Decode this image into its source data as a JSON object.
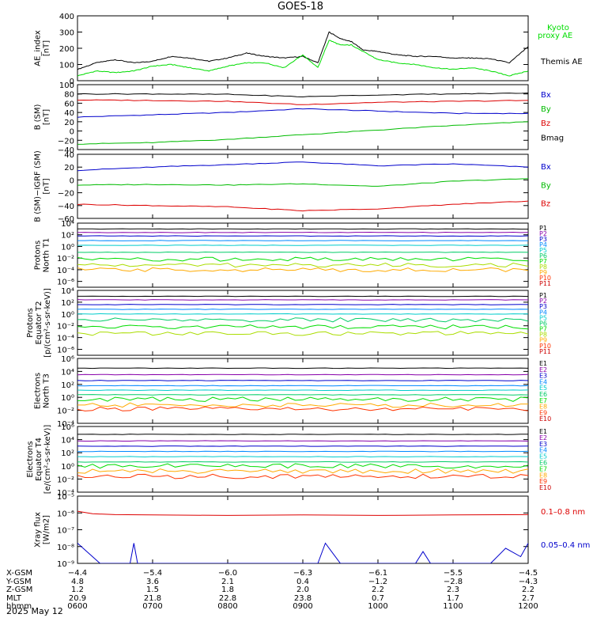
{
  "title": "GOES-18",
  "date_label": "2025 May 12",
  "chart_data": [
    {
      "type": "line",
      "panel": "ae",
      "ylabel": [
        "AE_index",
        "[nT]"
      ],
      "ylim": [
        0,
        400
      ],
      "ticks": [
        0,
        100,
        200,
        300,
        400
      ],
      "tick_labels": [
        "0",
        "100",
        "200",
        "300",
        "400"
      ],
      "legend": [
        {
          "name": "Kyoto",
          "color": "#00dd00"
        },
        {
          "name": "proxy AE",
          "color": "#00dd00"
        },
        {
          "name": "Themis AE",
          "color": "#000000"
        }
      ],
      "series": [
        {
          "name": "Themis AE",
          "color": "#000000",
          "x": [
            6.0,
            6.25,
            6.5,
            6.75,
            7.0,
            7.25,
            7.5,
            7.75,
            8.0,
            8.25,
            8.5,
            8.75,
            9.0,
            9.2,
            9.35,
            9.5,
            9.65,
            9.8,
            10.0,
            10.25,
            10.5,
            10.75,
            11.0,
            11.25,
            11.5,
            11.75,
            12.0
          ],
          "y": [
            70,
            110,
            130,
            110,
            120,
            150,
            140,
            120,
            140,
            170,
            150,
            140,
            150,
            110,
            300,
            260,
            240,
            190,
            180,
            160,
            150,
            150,
            140,
            140,
            135,
            110,
            210
          ]
        },
        {
          "name": "Kyoto proxy AE",
          "color": "#00dd00",
          "x": [
            6.0,
            6.25,
            6.5,
            6.75,
            7.0,
            7.25,
            7.5,
            7.75,
            8.0,
            8.25,
            8.5,
            8.75,
            9.0,
            9.2,
            9.35,
            9.5,
            9.65,
            9.8,
            10.0,
            10.25,
            10.5,
            10.75,
            11.0,
            11.25,
            11.5,
            11.75,
            12.0
          ],
          "y": [
            30,
            60,
            50,
            60,
            90,
            100,
            80,
            60,
            90,
            110,
            110,
            80,
            160,
            80,
            250,
            220,
            220,
            180,
            130,
            110,
            100,
            80,
            70,
            80,
            60,
            30,
            60
          ]
        }
      ]
    },
    {
      "type": "line",
      "panel": "b_sm",
      "ylabel": [
        "B (SM)",
        "[nT]"
      ],
      "ylim": [
        -40,
        100
      ],
      "ticks": [
        -40,
        -20,
        0,
        20,
        40,
        60,
        80,
        100
      ],
      "tick_labels": [
        "−40",
        "−20",
        "0",
        "20",
        "40",
        "60",
        "80",
        "100"
      ],
      "legend": [
        {
          "name": "Bx",
          "color": "#0000cc"
        },
        {
          "name": "By",
          "color": "#00bb00"
        },
        {
          "name": "Bz",
          "color": "#dd0000"
        },
        {
          "name": "Bmag",
          "color": "#000000"
        }
      ],
      "series": [
        {
          "name": "Bx",
          "color": "#0000cc",
          "x": [
            6,
            7,
            8,
            9,
            10,
            11,
            12
          ],
          "y": [
            30,
            35,
            40,
            48,
            43,
            38,
            38
          ]
        },
        {
          "name": "By",
          "color": "#00bb00",
          "x": [
            6,
            7,
            8,
            9,
            10,
            11,
            12
          ],
          "y": [
            -28,
            -25,
            -18,
            -8,
            2,
            12,
            20
          ]
        },
        {
          "name": "Bz",
          "color": "#dd0000",
          "x": [
            6,
            7,
            8,
            9,
            10,
            11,
            12
          ],
          "y": [
            67,
            66,
            64,
            57,
            62,
            64,
            66
          ]
        },
        {
          "name": "Bmag",
          "color": "#000000",
          "x": [
            6,
            7,
            8,
            9,
            10,
            11,
            12
          ],
          "y": [
            80,
            80,
            79,
            74,
            78,
            80,
            82
          ]
        }
      ]
    },
    {
      "type": "line",
      "panel": "b_igrf",
      "ylabel": [
        "B (SM)−IGRF (SM)",
        "[nT]"
      ],
      "ylim": [
        -60,
        40
      ],
      "ticks": [
        -60,
        -40,
        -20,
        0,
        20,
        40
      ],
      "tick_labels": [
        "−60",
        "−40",
        "−20",
        "0",
        "20",
        "40"
      ],
      "legend": [
        {
          "name": "Bx",
          "color": "#0000cc"
        },
        {
          "name": "By",
          "color": "#00bb00"
        },
        {
          "name": "Bz",
          "color": "#dd0000"
        }
      ],
      "series": [
        {
          "name": "Bx",
          "color": "#0000cc",
          "x": [
            6,
            7,
            8,
            9,
            10,
            11,
            12
          ],
          "y": [
            15,
            20,
            24,
            28,
            22,
            25,
            20
          ]
        },
        {
          "name": "By",
          "color": "#00bb00",
          "x": [
            6,
            7,
            8,
            9,
            10,
            11,
            12
          ],
          "y": [
            -8,
            -7,
            -8,
            -6,
            -10,
            -2,
            2
          ]
        },
        {
          "name": "Bz",
          "color": "#dd0000",
          "x": [
            6,
            7,
            8,
            9,
            10,
            11,
            12
          ],
          "y": [
            -38,
            -40,
            -42,
            -48,
            -45,
            -38,
            -33
          ]
        }
      ]
    },
    {
      "type": "line",
      "panel": "protons_t1",
      "ylabel": [
        "Protons",
        "North T1"
      ],
      "ylog": true,
      "ylim": [
        -7,
        4
      ],
      "ticks": [
        4,
        2,
        0,
        -2,
        -4,
        -6
      ],
      "tick_labels": [
        "10⁴",
        "10²",
        "10⁰",
        "10⁻²",
        "10⁻⁴",
        "10⁻⁶"
      ],
      "legend": [
        "P1",
        "P2",
        "P3",
        "P4",
        "P5",
        "P6",
        "P7",
        "P8",
        "P9",
        "P10",
        "P11"
      ],
      "log_levels": [
        3.0,
        2.4,
        1.8,
        1.0,
        0.2,
        -1.0,
        -2.2,
        -3.2,
        -4.0
      ]
    },
    {
      "type": "line",
      "panel": "protons_t2",
      "ylabel": [
        "Protons",
        "Equator T2",
        "[p/(cm²-s-sr-keV)]"
      ],
      "ylog": true,
      "ylim": [
        -7,
        4
      ],
      "ticks": [
        4,
        2,
        0,
        -2,
        -4,
        -6
      ],
      "tick_labels": [
        "10⁴",
        "10²",
        "10⁰",
        "10⁻²",
        "10⁻⁴",
        "10⁻⁶"
      ],
      "legend": [
        "P1",
        "P2",
        "P3",
        "P4",
        "P5",
        "P6",
        "P7",
        "P8",
        "P9",
        "P10",
        "P11"
      ],
      "log_levels": [
        3.0,
        2.4,
        1.6,
        0.8,
        0.0,
        -1.0,
        -2.2,
        -3.3
      ]
    },
    {
      "type": "line",
      "panel": "electrons_t3",
      "ylabel": [
        "Electrons",
        "North T3"
      ],
      "ylog": true,
      "ylim": [
        -4,
        6
      ],
      "ticks": [
        6,
        4,
        2,
        0,
        -2,
        -4
      ],
      "tick_labels": [
        "10⁶",
        "10⁴",
        "10²",
        "10⁰",
        "10⁻²",
        "10⁻⁴"
      ],
      "legend": [
        "E1",
        "E2",
        "E3",
        "E4",
        "E5",
        "E6",
        "E7",
        "E8",
        "E9",
        "E10"
      ],
      "log_levels": [
        4.5,
        3.5,
        2.6,
        1.8,
        1.1,
        0.4,
        -0.3,
        -1.2,
        -1.8
      ]
    },
    {
      "type": "line",
      "panel": "electrons_t4",
      "ylabel": [
        "Electrons",
        "Equator T4",
        "[e/(cm²-s-sr-keV)]"
      ],
      "ylog": true,
      "ylim": [
        -4,
        6
      ],
      "ticks": [
        6,
        4,
        2,
        0,
        -2,
        -4
      ],
      "tick_labels": [
        "10⁶",
        "10⁴",
        "10²",
        "10⁰",
        "10⁻²",
        "10⁻⁴"
      ],
      "legend": [
        "E1",
        "E2",
        "E3",
        "E4",
        "E5",
        "E6",
        "E7",
        "E8",
        "E9",
        "E10"
      ],
      "log_levels": [
        4.8,
        3.8,
        3.0,
        2.2,
        1.4,
        0.6,
        0.0,
        -0.8,
        -1.6
      ]
    },
    {
      "type": "line",
      "panel": "xray",
      "ylabel": [
        "Xray flux",
        "[W/m2]"
      ],
      "ylog": true,
      "ylim": [
        -9,
        -5
      ],
      "ticks": [
        -5,
        -6,
        -7,
        -8,
        -9
      ],
      "tick_labels": [
        "10⁻⁵",
        "10⁻⁶",
        "10⁻⁷",
        "10⁻⁸",
        "10⁻⁹"
      ],
      "legend": [
        {
          "name": "0.1–0.8 nm",
          "color": "#dd0000"
        },
        {
          "name": "0.05–0.4 nm",
          "color": "#0000cc"
        }
      ],
      "series": [
        {
          "name": "0.1–0.8 nm",
          "color": "#dd0000",
          "x": [
            6.0,
            6.2,
            6.5,
            7,
            8,
            9,
            10,
            11,
            12
          ],
          "y": [
            -5.9,
            -6.05,
            -6.1,
            -6.12,
            -6.15,
            -6.12,
            -6.15,
            -6.12,
            -6.1
          ]
        },
        {
          "name": "0.05–0.4 nm",
          "color": "#0000cc",
          "x": [
            6.0,
            6.1,
            6.2,
            6.3,
            6.4,
            6.5,
            6.7,
            6.75,
            6.8,
            6.9,
            9.2,
            9.3,
            9.4,
            9.5,
            9.6,
            10.5,
            10.6,
            10.7,
            11.5,
            11.7,
            11.9,
            12.0
          ],
          "y": [
            -7.8,
            -8.2,
            -8.6,
            -9.0,
            -9.0,
            -9.0,
            -9.0,
            -7.8,
            -9.0,
            -9.0,
            -9.0,
            -7.8,
            -8.4,
            -9.0,
            -9.0,
            -9.0,
            -8.3,
            -9.0,
            -9.0,
            -8.1,
            -8.6,
            -7.8
          ]
        }
      ]
    }
  ],
  "x_axis": {
    "row_labels": [
      "X-GSM",
      "Y-GSM",
      "Z-GSM",
      "MLT",
      "hhmm"
    ],
    "columns": [
      {
        "t": 6,
        "vals": [
          "−4.4",
          "4.8",
          "1.2",
          "20.9",
          "0600"
        ]
      },
      {
        "t": 7,
        "vals": [
          "−5.4",
          "3.6",
          "1.5",
          "21.8",
          "0700"
        ]
      },
      {
        "t": 8,
        "vals": [
          "−6.0",
          "2.1",
          "1.8",
          "22.8",
          "0800"
        ]
      },
      {
        "t": 9,
        "vals": [
          "−6.3",
          "0.4",
          "2.0",
          "23.8",
          "0900"
        ]
      },
      {
        "t": 10,
        "vals": [
          "−6.1",
          "−1.2",
          "2.2",
          "0.7",
          "1000"
        ]
      },
      {
        "t": 11,
        "vals": [
          "−5.5",
          "−2.8",
          "2.3",
          "1.7",
          "1100"
        ]
      },
      {
        "t": 12,
        "vals": [
          "−4.5",
          "−4.3",
          "2.2",
          "2.7",
          "1200"
        ]
      }
    ]
  },
  "colors": {
    "P": [
      "#000000",
      "#8800aa",
      "#0000cc",
      "#0088ff",
      "#00cccc",
      "#00cc66",
      "#00dd00",
      "#aadd00",
      "#ffaa00",
      "#ff3300",
      "#cc0000"
    ],
    "E": [
      "#000000",
      "#8800aa",
      "#0000cc",
      "#0088ff",
      "#00cccc",
      "#00cc66",
      "#00dd00",
      "#ffaa00",
      "#ff3300",
      "#cc0000"
    ]
  }
}
